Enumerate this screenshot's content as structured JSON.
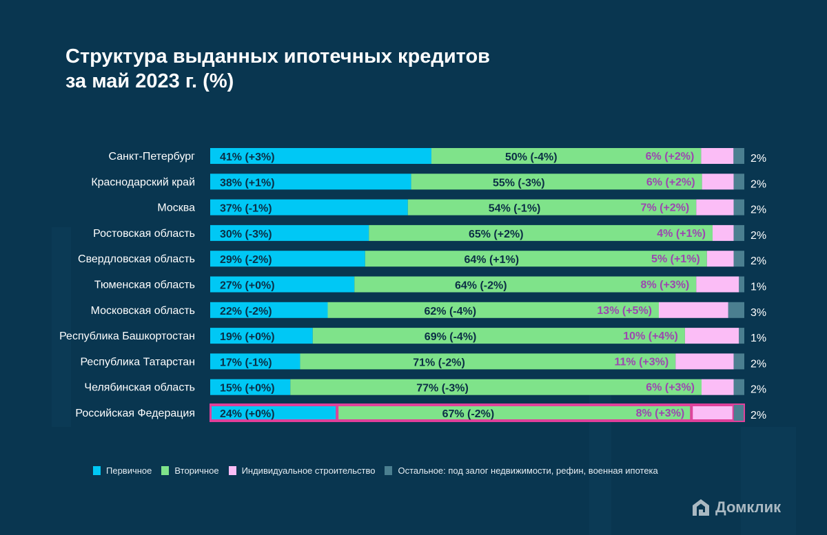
{
  "title_line1": "Структура выданных ипотечных кредитов",
  "title_line2": "за май 2023 г. (%)",
  "chart_data": {
    "type": "bar",
    "orientation": "horizontal",
    "stacked": true,
    "title": "Структура выданных ипотечных кредитов за май 2023 г. (%)",
    "categories": [
      "Санкт-Петербург",
      "Краснодарский край",
      "Москва",
      "Ростовская область",
      "Свердловская область",
      "Тюменская область",
      "Московская область",
      "Республика Башкортостан",
      "Республика Татарстан",
      "Челябинская область",
      "Российская Федерация"
    ],
    "highlighted": "Российская Федерация",
    "series": [
      {
        "name": "Первичное",
        "color": "#00c8f5",
        "values": [
          41,
          38,
          37,
          30,
          29,
          27,
          22,
          19,
          17,
          15,
          24
        ],
        "labels": [
          "41% (+3%)",
          "38% (+1%)",
          "37% (-1%)",
          "30% (-3%)",
          "29% (-2%)",
          "27% (+0%)",
          "22% (-2%)",
          "19% (+0%)",
          "17% (-1%)",
          "15% (+0%)",
          "24% (+0%)"
        ]
      },
      {
        "name": "Вторичное",
        "color": "#7fe38a",
        "values": [
          50,
          55,
          54,
          65,
          64,
          64,
          62,
          69,
          71,
          77,
          67
        ],
        "labels": [
          "50% (-4%)",
          "55% (-3%)",
          "54% (-1%)",
          "65% (+2%)",
          "64% (+1%)",
          "64% (-2%)",
          "62% (-4%)",
          "69% (-4%)",
          "71% (-2%)",
          "77% (-3%)",
          "67% (-2%)"
        ]
      },
      {
        "name": "Индивидуальное строительство",
        "color": "#fbbdf6",
        "values": [
          6,
          6,
          7,
          4,
          5,
          8,
          13,
          10,
          11,
          6,
          8
        ],
        "labels": [
          "6% (+2%)",
          "6% (+2%)",
          "7% (+2%)",
          "4% (+1%)",
          "5% (+1%)",
          "8% (+3%)",
          "13% (+5%)",
          "10% (+4%)",
          "11% (+3%)",
          "6% (+3%)",
          "8% (+3%)"
        ]
      },
      {
        "name": "Остальное: под залог недвижимости, рефин, военная ипотека",
        "color": "#4b7f90",
        "values": [
          2,
          2,
          2,
          2,
          2,
          1,
          3,
          1,
          2,
          2,
          2
        ],
        "labels": [
          "2%",
          "2%",
          "2%",
          "2%",
          "2%",
          "1%",
          "3%",
          "1%",
          "2%",
          "2%",
          "2%"
        ]
      }
    ],
    "highlight_color": "#e0409a",
    "label_color": "#9c46b0"
  },
  "brand": "Домклик"
}
